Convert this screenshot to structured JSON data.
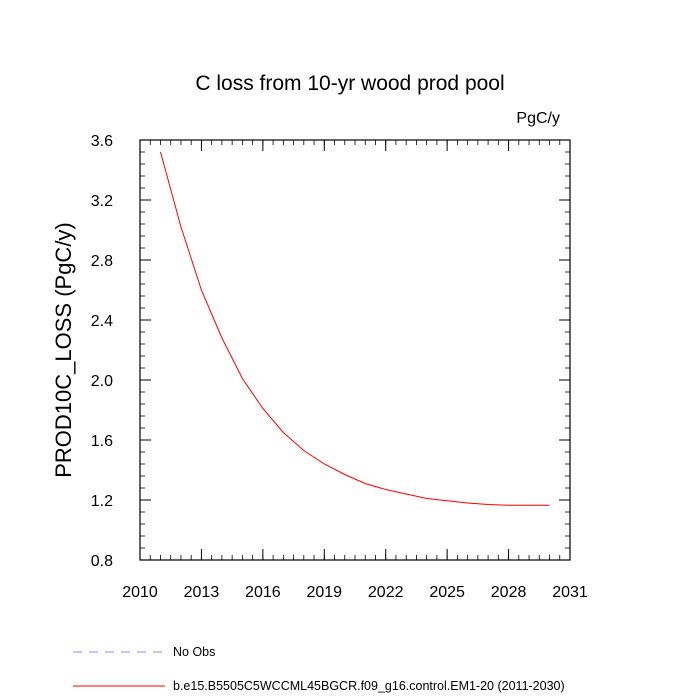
{
  "chart_data": {
    "type": "line",
    "title": "C loss from 10-yr wood prod pool",
    "units": "PgC/y",
    "xlabel": "",
    "ylabel": "PROD10C_LOSS  (PgC/y)",
    "xlim": [
      2010,
      2031
    ],
    "ylim": [
      0.8,
      3.6
    ],
    "x_ticks": [
      2010,
      2013,
      2016,
      2019,
      2022,
      2025,
      2028,
      2031
    ],
    "y_ticks": [
      0.8,
      1.2,
      1.6,
      2.0,
      2.4,
      2.8,
      3.2,
      3.6
    ],
    "x_tick_labels": [
      "2010",
      "2013",
      "2016",
      "2019",
      "2022",
      "2025",
      "2028",
      "2031"
    ],
    "y_tick_labels": [
      "0.8",
      "1.2",
      "1.6",
      "2.0",
      "2.4",
      "2.8",
      "3.2",
      "3.6"
    ],
    "grid": false,
    "legend_position": "bottom",
    "series": [
      {
        "name": "No Obs",
        "color": "#8c8cff",
        "style": "dashed",
        "x": [],
        "values": []
      },
      {
        "name": "b.e15.B5505C5WCCML45BGCR.f09_g16.control.EM1-20 (2011-2030)",
        "color": "#ff0000",
        "style": "solid",
        "x": [
          2011,
          2012,
          2013,
          2014,
          2015,
          2016,
          2017,
          2018,
          2019,
          2020,
          2021,
          2022,
          2023,
          2024,
          2025,
          2026,
          2027,
          2028,
          2029,
          2030
        ],
        "values": [
          3.52,
          3.02,
          2.6,
          2.28,
          2.01,
          1.81,
          1.65,
          1.53,
          1.44,
          1.37,
          1.31,
          1.27,
          1.24,
          1.21,
          1.195,
          1.18,
          1.17,
          1.165,
          1.165,
          1.165
        ]
      }
    ]
  }
}
